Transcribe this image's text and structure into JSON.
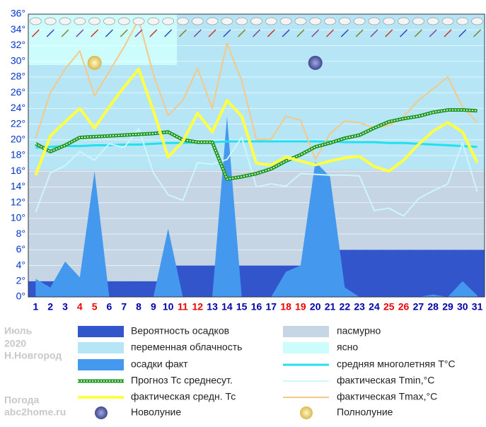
{
  "chart_data": {
    "type": "weather",
    "month": "Июль",
    "year": "2020",
    "city": "Н.Новгород",
    "site_label": "Погода",
    "site": "abc2home.ru",
    "x": [
      1,
      2,
      3,
      4,
      5,
      6,
      7,
      8,
      9,
      10,
      11,
      12,
      13,
      14,
      15,
      16,
      17,
      18,
      19,
      20,
      21,
      22,
      23,
      24,
      25,
      26,
      27,
      28,
      29,
      30,
      31
    ],
    "weekend_days": [
      4,
      5,
      11,
      12,
      18,
      19,
      25,
      26
    ],
    "weekday_color": "#0000aa",
    "weekend_color": "#ee0000",
    "xlim": [
      0.5,
      31.5
    ],
    "ylim": [
      0,
      36
    ],
    "yticks": [
      {
        "value": 0,
        "label": "0°"
      },
      {
        "value": 2,
        "label": "2°"
      },
      {
        "value": 4,
        "label": "4°"
      },
      {
        "value": 6,
        "label": "6°"
      },
      {
        "value": 8,
        "label": "8°"
      },
      {
        "value": 10,
        "label": "10°"
      },
      {
        "value": 12,
        "label": "12°"
      },
      {
        "value": 14,
        "label": "14°"
      },
      {
        "value": 16,
        "label": "16°"
      },
      {
        "value": 18,
        "label": "18°"
      },
      {
        "value": 20,
        "label": "20°"
      },
      {
        "value": 22,
        "label": "22°"
      },
      {
        "value": 24,
        "label": "24°"
      },
      {
        "value": 26,
        "label": "26°"
      },
      {
        "value": 28,
        "label": "28°"
      },
      {
        "value": 30,
        "label": "30°"
      },
      {
        "value": 32,
        "label": "32°"
      },
      {
        "value": 34,
        "label": "34°"
      },
      {
        "value": 36,
        "label": "36°"
      }
    ],
    "grid": true,
    "cloud_types": [
      {
        "name": "пасмурно",
        "color": "#c5d5e3"
      },
      {
        "name": "переменная облачность",
        "color": "#b6e6f6"
      },
      {
        "name": "ясно",
        "color": "#ccfcfc"
      }
    ],
    "series": [
      {
        "name": "Вероятность осадков",
        "kind": "step",
        "color": "#3355cc",
        "values": [
          2,
          2,
          2,
          2,
          2,
          2,
          2,
          2,
          2,
          2,
          4,
          4,
          4,
          4,
          4,
          4,
          4,
          4,
          4,
          4,
          6,
          6,
          6,
          6,
          6,
          6,
          6,
          6,
          6,
          6,
          6
        ]
      },
      {
        "name": "осадки факт",
        "kind": "area",
        "color": "#4499ee",
        "values": [
          2.3,
          1.2,
          4.5,
          2.5,
          16,
          0,
          0,
          0,
          0,
          8.7,
          0,
          0,
          0,
          23,
          0,
          0,
          0,
          3.2,
          4,
          17.2,
          15.3,
          1.2,
          0,
          0,
          0,
          0,
          0,
          0.3,
          0,
          2,
          0.2
        ]
      },
      {
        "name": "средняя многолетняя T°C",
        "kind": "line",
        "color": "#22e0ee",
        "width": 3,
        "values": [
          19,
          19.1,
          19.2,
          19.2,
          19.3,
          19.3,
          19.4,
          19.4,
          19.5,
          19.6,
          19.6,
          19.7,
          19.7,
          19.8,
          19.8,
          19.8,
          19.8,
          19.8,
          19.8,
          19.8,
          19.8,
          19.7,
          19.7,
          19.7,
          19.6,
          19.6,
          19.5,
          19.4,
          19.3,
          19.2,
          19.1
        ]
      },
      {
        "name": "фактическая Tmin,°C",
        "kind": "line",
        "color": "#ccf6fa",
        "width": 2,
        "values": [
          10.8,
          15.8,
          16.7,
          18.5,
          17.4,
          19.5,
          19,
          21.4,
          15.8,
          13,
          12.3,
          17.1,
          16.9,
          17.5,
          20.3,
          14,
          14.4,
          14.1,
          15.7,
          15.6,
          15.5,
          15.5,
          15.4,
          11,
          11.3,
          10.3,
          12.5,
          13.5,
          14.4,
          19.6,
          13.4
        ]
      },
      {
        "name": "фактическая Tmax,°C",
        "kind": "line",
        "color": "#f5c888",
        "width": 2,
        "values": [
          20.2,
          26,
          29,
          31.3,
          25.6,
          28.7,
          31.8,
          35.3,
          28.3,
          23.1,
          25,
          29.1,
          24,
          32.3,
          27.5,
          20,
          20.1,
          23,
          22.5,
          17.5,
          20.8,
          22.4,
          22.2,
          21.5,
          21.8,
          23,
          25,
          26.5,
          28,
          24.2,
          22.2
        ]
      },
      {
        "name": "Прогноз Тс среднесут.",
        "kind": "dashed",
        "color": "#229922",
        "width": 5,
        "values": [
          19.5,
          18.5,
          19.3,
          20.3,
          20.4,
          20.5,
          20.6,
          20.7,
          20.8,
          21,
          20,
          19.7,
          19.7,
          15,
          15.3,
          15.7,
          16.3,
          17.3,
          18.1,
          19.1,
          19.6,
          20.2,
          20.6,
          21.5,
          22.3,
          22.7,
          23,
          23.5,
          23.8,
          23.8,
          23.7
        ]
      },
      {
        "name": "фактическая средн. Тс",
        "kind": "line",
        "color": "#ffff44",
        "width": 4,
        "values": [
          15.5,
          20.5,
          22.3,
          24,
          21.5,
          24.2,
          26.7,
          29,
          23.7,
          17.8,
          19.8,
          23.4,
          21,
          25,
          23,
          17,
          16.8,
          17.8,
          17.3,
          16.8,
          17.3,
          17.7,
          17.9,
          16.6,
          16,
          17.4,
          19.4,
          21.1,
          22.2,
          21,
          17.1
        ]
      }
    ],
    "moons": [
      {
        "name": "Новолуние",
        "day": 20,
        "color": "#7a88c8"
      },
      {
        "name": "Полнолуние",
        "day": 5,
        "color": "#f0e090"
      }
    ]
  }
}
